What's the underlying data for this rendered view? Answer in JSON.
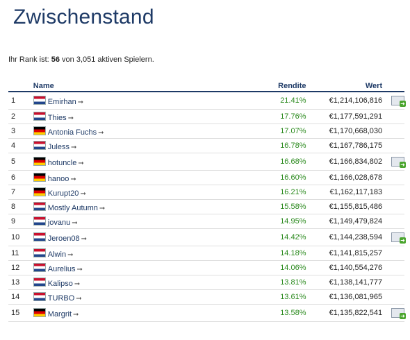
{
  "page": {
    "title": "Zwischenstand",
    "rank_prefix": "Ihr Rank ist: ",
    "rank_value": "56",
    "rank_suffix": " von 3,051 aktiven Spielern."
  },
  "table": {
    "headers": {
      "rank": "",
      "name": "Name",
      "return": "Rendite",
      "value": "Wert"
    },
    "rows": [
      {
        "rank": "1",
        "flag": "nl",
        "name": "Emirhan",
        "return": "21.41%",
        "value": "€1,214,106,816",
        "msg": true
      },
      {
        "rank": "2",
        "flag": "nl",
        "name": "Thies",
        "return": "17.76%",
        "value": "€1,177,591,291",
        "msg": false
      },
      {
        "rank": "3",
        "flag": "de",
        "name": "Antonia Fuchs",
        "return": "17.07%",
        "value": "€1,170,668,030",
        "msg": false
      },
      {
        "rank": "4",
        "flag": "nl",
        "name": "Juless",
        "return": "16.78%",
        "value": "€1,167,786,175",
        "msg": false
      },
      {
        "rank": "5",
        "flag": "de",
        "name": "hotuncle",
        "return": "16.68%",
        "value": "€1,166,834,802",
        "msg": true
      },
      {
        "rank": "6",
        "flag": "de",
        "name": "hanoo",
        "return": "16.60%",
        "value": "€1,166,028,678",
        "msg": false
      },
      {
        "rank": "7",
        "flag": "de",
        "name": "Kurupt20",
        "return": "16.21%",
        "value": "€1,162,117,183",
        "msg": false
      },
      {
        "rank": "8",
        "flag": "nl",
        "name": "Mostly Autumn",
        "return": "15.58%",
        "value": "€1,155,815,486",
        "msg": false
      },
      {
        "rank": "9",
        "flag": "nl",
        "name": "jovanu",
        "return": "14.95%",
        "value": "€1,149,479,824",
        "msg": false
      },
      {
        "rank": "10",
        "flag": "nl",
        "name": "Jeroen08",
        "return": "14.42%",
        "value": "€1,144,238,594",
        "msg": true
      },
      {
        "rank": "11",
        "flag": "nl",
        "name": "Alwin",
        "return": "14.18%",
        "value": "€1,141,815,257",
        "msg": false
      },
      {
        "rank": "12",
        "flag": "nl",
        "name": "Aurelius",
        "return": "14.06%",
        "value": "€1,140,554,276",
        "msg": false
      },
      {
        "rank": "13",
        "flag": "nl",
        "name": "Kalipso",
        "return": "13.81%",
        "value": "€1,138,141,777",
        "msg": false
      },
      {
        "rank": "14",
        "flag": "nl",
        "name": "TURBO",
        "return": "13.61%",
        "value": "€1,136,081,965",
        "msg": false
      },
      {
        "rank": "15",
        "flag": "de",
        "name": "Margrit",
        "return": "13.58%",
        "value": "€1,135,822,541",
        "msg": true
      }
    ]
  },
  "icons": {
    "arrow": "arrow-right-icon",
    "message": "send-message-icon",
    "flags": {
      "nl": "netherlands-flag-icon",
      "de": "germany-flag-icon"
    }
  },
  "colors": {
    "title": "#1e3a66",
    "header": "#1e3a66",
    "return_positive": "#2b8a1e",
    "link": "#1e3a66"
  }
}
